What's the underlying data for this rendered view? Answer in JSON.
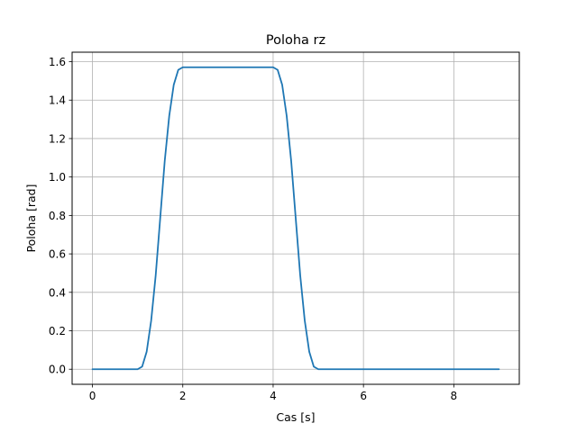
{
  "chart_data": {
    "type": "line",
    "title": "Poloha rz",
    "xlabel": "Cas [s]",
    "ylabel": "Poloha [rad]",
    "xlim": [
      -0.45,
      9.45
    ],
    "ylim": [
      -0.0785,
      1.6493
    ],
    "xticks": [
      0,
      2,
      4,
      6,
      8
    ],
    "xtick_labels": [
      "0",
      "2",
      "4",
      "6",
      "8"
    ],
    "yticks": [
      0.0,
      0.2,
      0.4,
      0.6,
      0.8,
      1.0,
      1.2,
      1.4,
      1.6
    ],
    "ytick_labels": [
      "0.0",
      "0.2",
      "0.4",
      "0.6",
      "0.8",
      "1.0",
      "1.2",
      "1.4",
      "1.6"
    ],
    "grid": true,
    "series": [
      {
        "color": "#1f77b4",
        "x": [
          0,
          1.0,
          1.1,
          1.2,
          1.3,
          1.4,
          1.5,
          1.6,
          1.7,
          1.8,
          1.9,
          2.0,
          3.0,
          4.0,
          4.1,
          4.2,
          4.3,
          4.4,
          4.5,
          4.6,
          4.7,
          4.8,
          4.9,
          5.0,
          9.0
        ],
        "y": [
          0.0,
          0.0,
          0.0135,
          0.0909,
          0.2527,
          0.488,
          0.7854,
          1.0828,
          1.3181,
          1.4799,
          1.5573,
          1.5708,
          1.5708,
          1.5708,
          1.5573,
          1.4799,
          1.3181,
          1.0828,
          0.7854,
          0.488,
          0.2527,
          0.0909,
          0.0135,
          0.0,
          0.0
        ]
      }
    ]
  }
}
